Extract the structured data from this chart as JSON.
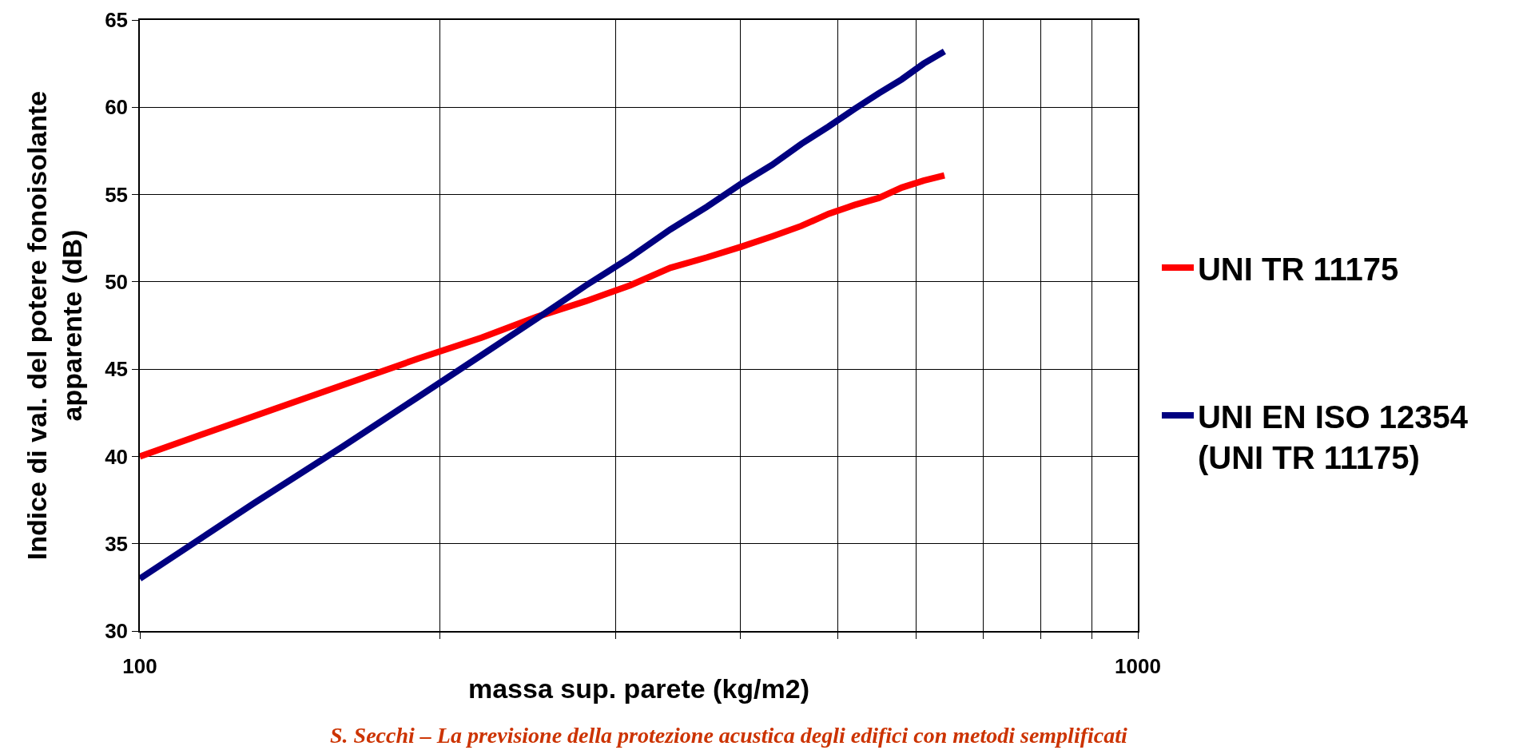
{
  "chart_data": {
    "type": "line",
    "xlabel": "massa sup. parete (kg/m2)",
    "ylabel": "Indice di val. del potere fonoisolante\napparente (dB)",
    "x": [
      100,
      130,
      160,
      190,
      220,
      250,
      280,
      310,
      340,
      370,
      400,
      430,
      460,
      490,
      520,
      550,
      580,
      610,
      640
    ],
    "series": [
      {
        "name": "UNI TR 11175",
        "color": "#ff0000",
        "values": [
          40.0,
          42.3,
          44.1,
          45.6,
          46.8,
          48.0,
          48.9,
          49.8,
          50.8,
          51.4,
          52.0,
          52.6,
          53.2,
          53.9,
          54.4,
          54.8,
          55.4,
          55.8,
          56.1
        ]
      },
      {
        "name": "UNI EN ISO 12354\n(UNI TR 11175)",
        "color": "#000080",
        "values": [
          33.0,
          37.3,
          40.6,
          43.4,
          45.8,
          47.9,
          49.8,
          51.4,
          53.0,
          54.3,
          55.6,
          56.7,
          57.9,
          58.9,
          59.9,
          60.8,
          61.6,
          62.5,
          63.2
        ]
      }
    ],
    "xlim": [
      100,
      1000
    ],
    "xticks": [
      100,
      {
        "value": 200,
        "label": null
      },
      {
        "value": 300,
        "label": null
      },
      {
        "value": 400,
        "label": null
      },
      {
        "value": 500,
        "label": null
      },
      {
        "value": 600,
        "label": null
      },
      {
        "value": 700,
        "label": null
      },
      {
        "value": 800,
        "label": null
      },
      {
        "value": 900,
        "label": null
      },
      1000
    ],
    "ylim": [
      30,
      65
    ],
    "yticks": [
      30,
      35,
      40,
      45,
      50,
      55,
      60,
      65
    ],
    "log": "x",
    "grid": true,
    "legend": "right",
    "line_style": "solid",
    "annotations": [
      "S. Secchi – La previsione della protezione acustica degli edifici con metodi semplificati"
    ]
  }
}
